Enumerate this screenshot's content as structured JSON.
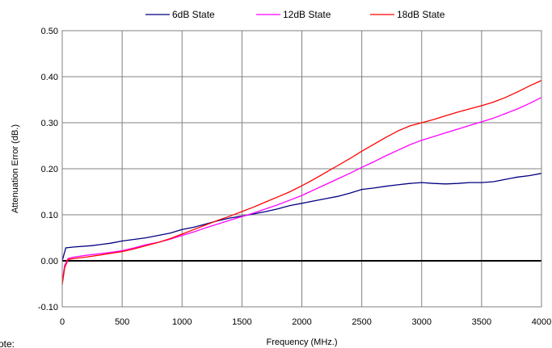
{
  "corner_text": "ote:",
  "chart_data": {
    "type": "line",
    "xlabel": "Frequency (MHz.)",
    "ylabel": "Attenuation Error (dB.)",
    "xlim": [
      0,
      4000
    ],
    "ylim": [
      -0.1,
      0.5
    ],
    "x_ticks": [
      "0",
      "500",
      "1000",
      "1500",
      "2000",
      "2500",
      "3000",
      "3500",
      "4000"
    ],
    "y_ticks": [
      "-0.10",
      "0.00",
      "0.10",
      "0.20",
      "0.30",
      "0.40",
      "0.50"
    ],
    "grid": true,
    "legend_position": "top",
    "series": [
      {
        "name": "6dB State",
        "color": "#000080",
        "points": [
          [
            0,
            0.0
          ],
          [
            30,
            0.028
          ],
          [
            100,
            0.03
          ],
          [
            250,
            0.033
          ],
          [
            400,
            0.038
          ],
          [
            500,
            0.043
          ],
          [
            700,
            0.05
          ],
          [
            900,
            0.06
          ],
          [
            1000,
            0.068
          ],
          [
            1100,
            0.073
          ],
          [
            1200,
            0.08
          ],
          [
            1300,
            0.087
          ],
          [
            1400,
            0.093
          ],
          [
            1500,
            0.097
          ],
          [
            1600,
            0.102
          ],
          [
            1700,
            0.107
          ],
          [
            1800,
            0.113
          ],
          [
            1900,
            0.12
          ],
          [
            2000,
            0.125
          ],
          [
            2100,
            0.13
          ],
          [
            2200,
            0.135
          ],
          [
            2300,
            0.14
          ],
          [
            2400,
            0.147
          ],
          [
            2500,
            0.155
          ],
          [
            2600,
            0.158
          ],
          [
            2700,
            0.162
          ],
          [
            2800,
            0.165
          ],
          [
            2900,
            0.168
          ],
          [
            3000,
            0.17
          ],
          [
            3100,
            0.168
          ],
          [
            3200,
            0.167
          ],
          [
            3300,
            0.168
          ],
          [
            3400,
            0.17
          ],
          [
            3500,
            0.17
          ],
          [
            3600,
            0.172
          ],
          [
            3700,
            0.177
          ],
          [
            3800,
            0.182
          ],
          [
            3900,
            0.185
          ],
          [
            4000,
            0.19
          ]
        ]
      },
      {
        "name": "12dB State",
        "color": "#ff00ff",
        "points": [
          [
            0,
            -0.045
          ],
          [
            20,
            -0.01
          ],
          [
            50,
            0.005
          ],
          [
            100,
            0.008
          ],
          [
            200,
            0.012
          ],
          [
            300,
            0.015
          ],
          [
            400,
            0.018
          ],
          [
            500,
            0.022
          ],
          [
            600,
            0.028
          ],
          [
            700,
            0.035
          ],
          [
            800,
            0.04
          ],
          [
            900,
            0.047
          ],
          [
            1000,
            0.055
          ],
          [
            1100,
            0.063
          ],
          [
            1200,
            0.072
          ],
          [
            1300,
            0.08
          ],
          [
            1400,
            0.088
          ],
          [
            1500,
            0.096
          ],
          [
            1600,
            0.104
          ],
          [
            1700,
            0.113
          ],
          [
            1800,
            0.122
          ],
          [
            1900,
            0.132
          ],
          [
            2000,
            0.142
          ],
          [
            2100,
            0.154
          ],
          [
            2200,
            0.166
          ],
          [
            2300,
            0.178
          ],
          [
            2400,
            0.19
          ],
          [
            2500,
            0.203
          ],
          [
            2600,
            0.215
          ],
          [
            2700,
            0.228
          ],
          [
            2800,
            0.24
          ],
          [
            2900,
            0.252
          ],
          [
            3000,
            0.262
          ],
          [
            3100,
            0.27
          ],
          [
            3200,
            0.278
          ],
          [
            3300,
            0.286
          ],
          [
            3400,
            0.294
          ],
          [
            3500,
            0.302
          ],
          [
            3600,
            0.31
          ],
          [
            3700,
            0.32
          ],
          [
            3800,
            0.33
          ],
          [
            3900,
            0.342
          ],
          [
            4000,
            0.355
          ]
        ]
      },
      {
        "name": "18dB State",
        "color": "#ff0000",
        "points": [
          [
            0,
            -0.052
          ],
          [
            20,
            -0.015
          ],
          [
            50,
            0.003
          ],
          [
            100,
            0.005
          ],
          [
            200,
            0.008
          ],
          [
            300,
            0.012
          ],
          [
            400,
            0.016
          ],
          [
            500,
            0.02
          ],
          [
            600,
            0.026
          ],
          [
            700,
            0.033
          ],
          [
            800,
            0.04
          ],
          [
            900,
            0.048
          ],
          [
            1000,
            0.058
          ],
          [
            1100,
            0.068
          ],
          [
            1200,
            0.078
          ],
          [
            1300,
            0.088
          ],
          [
            1400,
            0.097
          ],
          [
            1500,
            0.107
          ],
          [
            1600,
            0.117
          ],
          [
            1700,
            0.128
          ],
          [
            1800,
            0.139
          ],
          [
            1900,
            0.15
          ],
          [
            2000,
            0.163
          ],
          [
            2100,
            0.177
          ],
          [
            2200,
            0.192
          ],
          [
            2300,
            0.207
          ],
          [
            2400,
            0.222
          ],
          [
            2500,
            0.238
          ],
          [
            2600,
            0.253
          ],
          [
            2700,
            0.268
          ],
          [
            2800,
            0.282
          ],
          [
            2900,
            0.293
          ],
          [
            3000,
            0.3
          ],
          [
            3100,
            0.307
          ],
          [
            3200,
            0.315
          ],
          [
            3300,
            0.323
          ],
          [
            3400,
            0.33
          ],
          [
            3500,
            0.337
          ],
          [
            3600,
            0.345
          ],
          [
            3700,
            0.355
          ],
          [
            3800,
            0.367
          ],
          [
            3900,
            0.38
          ],
          [
            4000,
            0.392
          ]
        ]
      }
    ]
  }
}
